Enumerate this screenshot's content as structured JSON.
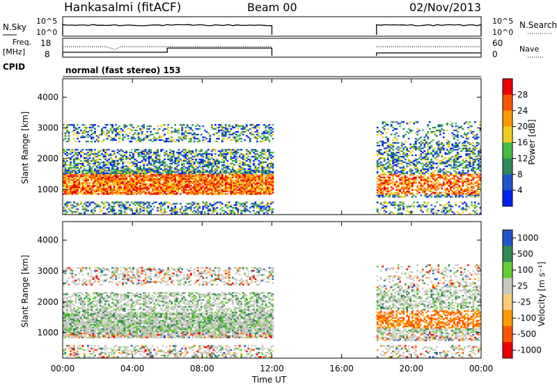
{
  "header": {
    "station": "Hankasalmi (fitACF)",
    "beam": "Beam 00",
    "date": "02/Nov/2013"
  },
  "panel_labels": {
    "nsky": "N.Sky",
    "nsearch": "N.Search",
    "freq": "Freq.",
    "freq_unit": "[MHz]",
    "nave": "Nave",
    "cpid": "CPID",
    "cpid_value": "normal (fast stereo) 153"
  },
  "colors": {
    "power": [
      "#0022ee",
      "#2255cc",
      "#2f8a5a",
      "#44bb44",
      "#eecc22",
      "#ff9900",
      "#ff5500",
      "#ee0000"
    ],
    "velocity": [
      "#ee0000",
      "#ff5500",
      "#ff9900",
      "#ffcc77",
      "#c8c8c0",
      "#66cc33",
      "#338855",
      "#2255cc"
    ]
  },
  "chart_data": [
    {
      "type": "line",
      "name": "noise",
      "ylabels_left": [
        "10^5",
        "10^0"
      ],
      "ylabels_right": [
        "10^5",
        "10^0"
      ],
      "segments": [
        [
          0,
          12
        ],
        [
          18,
          24
        ]
      ]
    },
    {
      "type": "line",
      "name": "frequency",
      "ylabels_left": [
        "18",
        "8"
      ],
      "ylabels_right": [
        "60",
        "0"
      ],
      "segments": [
        [
          0,
          12
        ],
        [
          18,
          24
        ]
      ]
    },
    {
      "type": "heatmap",
      "name": "power",
      "ylabel": "Slant Range [km]",
      "yticks": [
        1000,
        2000,
        3000,
        4000
      ],
      "ylim": [
        180,
        4600
      ],
      "xlim": [
        0,
        24
      ],
      "data_gap_hours": [
        12,
        18
      ],
      "colorbar_label": "Power [dB]",
      "colorbar_ticks": [
        "28",
        "24",
        "20",
        "16",
        "12",
        "8",
        "4"
      ]
    },
    {
      "type": "heatmap",
      "name": "velocity",
      "ylabel": "Slant Range [km]",
      "yticks": [
        1000,
        2000,
        3000,
        4000
      ],
      "ylim": [
        180,
        4600
      ],
      "xlim": [
        0,
        24
      ],
      "data_gap_hours": [
        12,
        18
      ],
      "colorbar_label": "Velocity [m s⁻¹]",
      "colorbar_ticks": [
        "1000",
        "500",
        "100",
        "25",
        "-25",
        "-100",
        "-500",
        "-1000"
      ]
    }
  ],
  "xaxis": {
    "ticks": [
      "00:00",
      "04:00",
      "08:00",
      "12:00",
      "16:00",
      "20:00",
      "00:00"
    ],
    "label": "Time UT"
  }
}
